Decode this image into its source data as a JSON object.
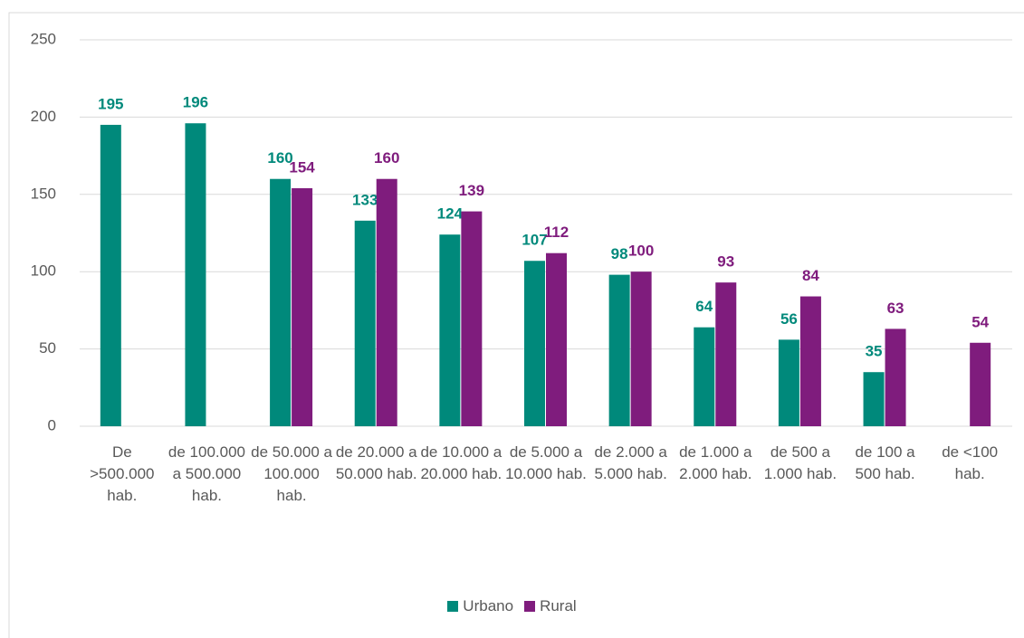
{
  "chart_data": {
    "type": "bar",
    "categories": [
      "De >500.000 hab.",
      "de 100.000 a 500.000 hab.",
      "de 50.000 a 100.000 hab.",
      "de 20.000 a 50.000 hab.",
      "de 10.000 a 20.000 hab.",
      "de 5.000 a 10.000 hab.",
      "de 2.000 a 5.000 hab.",
      "de 1.000 a 2.000 hab.",
      "de 500 a 1.000 hab.",
      "de 100 a 500 hab.",
      "de <100 hab."
    ],
    "series": [
      {
        "name": "Urbano",
        "color": "#00897b",
        "values": [
          195,
          196,
          160,
          133,
          124,
          107,
          98,
          64,
          56,
          35,
          null
        ]
      },
      {
        "name": "Rural",
        "color": "#7f1c7d",
        "values": [
          null,
          null,
          154,
          160,
          139,
          112,
          100,
          93,
          84,
          63,
          54
        ]
      }
    ],
    "ylim": [
      0,
      250
    ],
    "yticks": [
      0,
      50,
      100,
      150,
      200,
      250
    ],
    "grid": true,
    "legend": "bottom"
  }
}
